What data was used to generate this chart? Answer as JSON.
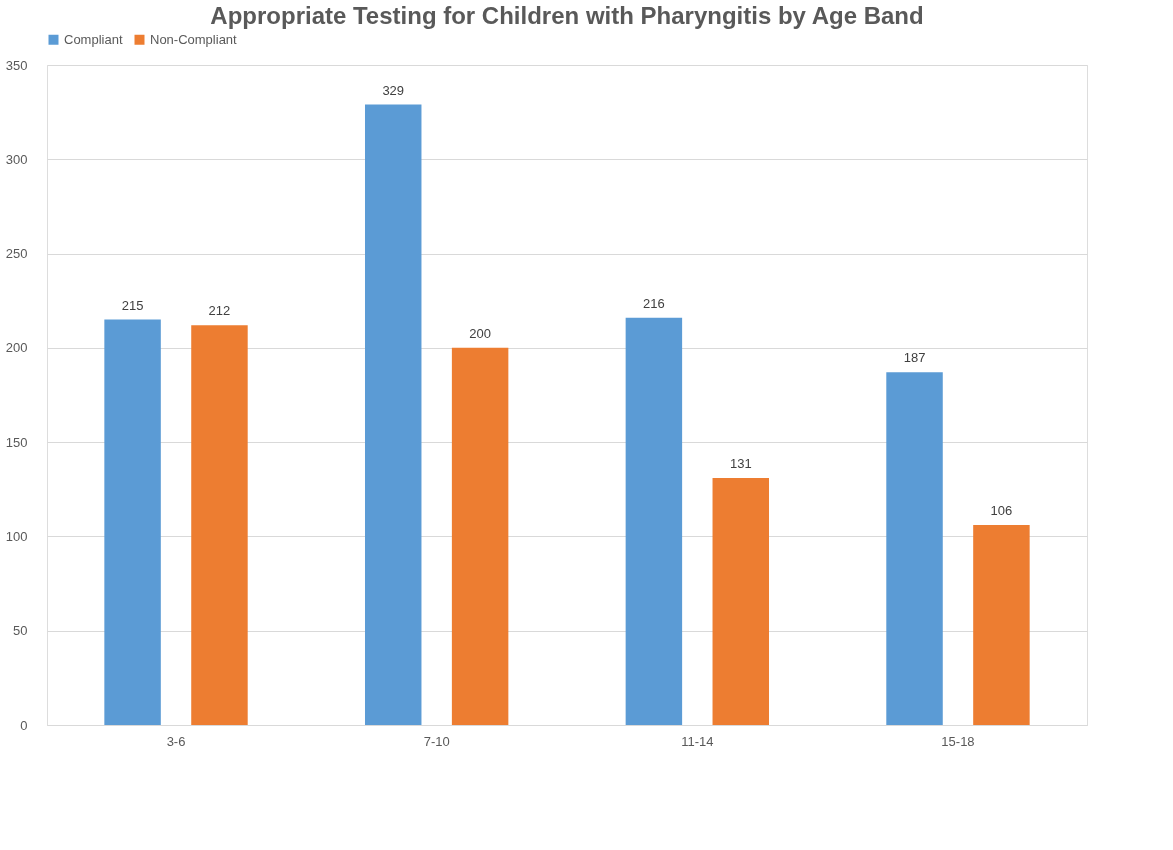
{
  "chart_data": {
    "type": "bar",
    "title": "Appropriate Testing for Children with Pharyngitis by Age Band",
    "categories": [
      "3-6",
      "7-10",
      "11-14",
      "15-18"
    ],
    "series": [
      {
        "name": "Compliant",
        "color": "#5b9bd5",
        "values": [
          215,
          329,
          216,
          187
        ]
      },
      {
        "name": "Non-Compliant",
        "color": "#ed7d31",
        "values": [
          212,
          200,
          131,
          106
        ]
      }
    ],
    "ylim": [
      0,
      350
    ],
    "yticks": [
      0,
      50,
      100,
      150,
      200,
      250,
      300,
      350
    ],
    "grid": "y",
    "legend": "top",
    "data_labels": true
  }
}
